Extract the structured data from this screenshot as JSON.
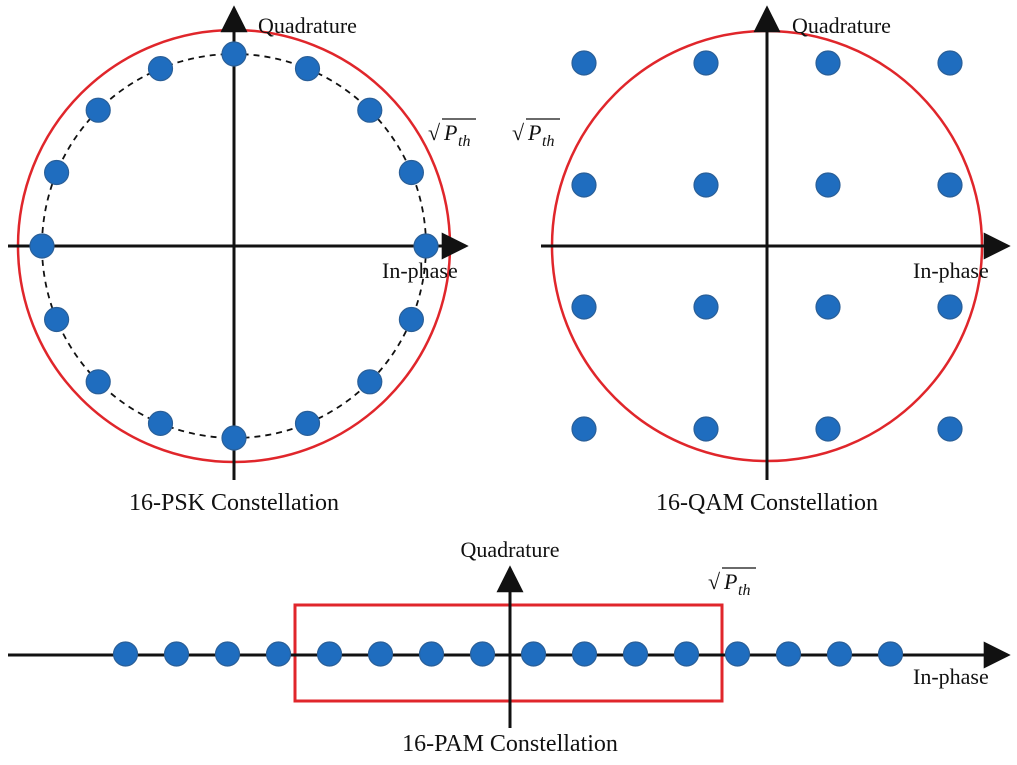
{
  "colors": {
    "point_fill": "#1f6dbf",
    "point_stroke": "#2a5f98",
    "boundary": "#e0262b",
    "axis": "#111111",
    "dashed_circle": "#111111"
  },
  "psk": {
    "title": "16-PSK Constellation",
    "y_axis_label": "Quadrature",
    "x_axis_label": "In-phase",
    "threshold": {
      "radical": "√",
      "symbol": "P",
      "subscript": "th"
    },
    "num_points": 16,
    "boundary_shape": "circle"
  },
  "qam": {
    "title": "16-QAM Constellation",
    "y_axis_label": "Quadrature",
    "x_axis_label": "In-phase",
    "threshold": {
      "radical": "√",
      "symbol": "P",
      "subscript": "th"
    },
    "levels": [
      -3,
      -1,
      1,
      3
    ],
    "boundary_shape": "circle"
  },
  "pam": {
    "title": "16-PAM Constellation",
    "y_axis_label": "Quadrature",
    "x_axis_label": "In-phase",
    "threshold": {
      "radical": "√",
      "symbol": "P",
      "subscript": "th"
    },
    "levels": [
      -15,
      -13,
      -11,
      -9,
      -7,
      -5,
      -3,
      -1,
      1,
      3,
      5,
      7,
      9,
      11,
      13,
      15
    ],
    "boundary_shape": "rectangle"
  }
}
